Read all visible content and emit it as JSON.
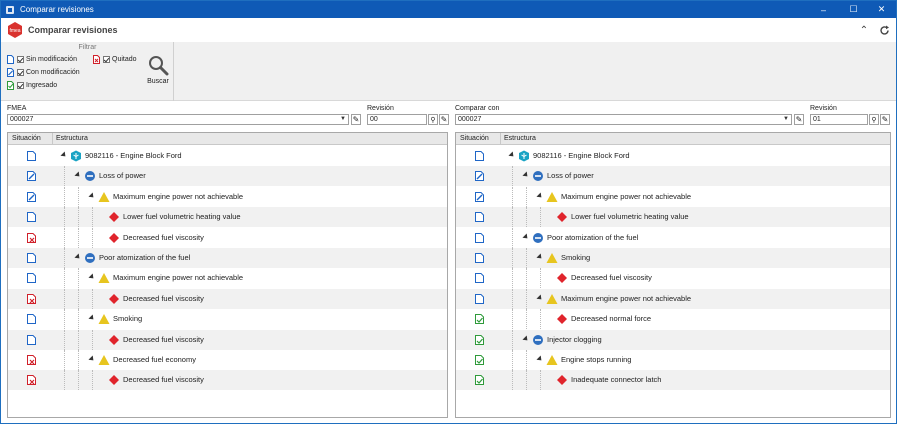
{
  "window": {
    "title": "Comparar revisiones",
    "controls": [
      "minimize",
      "maximize",
      "close"
    ]
  },
  "header": {
    "title": "Comparar revisiones",
    "buttons": [
      "collapse-icon",
      "refresh-icon"
    ]
  },
  "filters": {
    "group_title": "Filtrar",
    "items": [
      {
        "label": "Sin modificación",
        "checked": true,
        "icon": "doc-blue-icon"
      },
      {
        "label": "Con modificación",
        "checked": true,
        "icon": "doc-edit-icon"
      },
      {
        "label": "Ingresado",
        "checked": true,
        "icon": "doc-green-check-icon"
      },
      {
        "label": "Quitado",
        "checked": true,
        "icon": "doc-red-x-icon"
      }
    ],
    "search_label": "Buscar"
  },
  "left": {
    "fmea_label": "FMEA",
    "fmea_value": "000027",
    "rev_label": "Revisión",
    "rev_value": "00"
  },
  "right": {
    "fmea_label": "Comparar con",
    "fmea_value": "000027",
    "rev_label": "Revisión",
    "rev_value": "01"
  },
  "columns": {
    "situation": "Situación",
    "structure": "Estructura"
  },
  "left_rows": [
    {
      "status": "unchanged",
      "level": 0,
      "type": "product",
      "label": "9082116 - Engine Block Ford"
    },
    {
      "status": "modified",
      "level": 1,
      "type": "function",
      "label": "Loss of power"
    },
    {
      "status": "modified",
      "level": 2,
      "type": "failure",
      "label": "Maximum engine power not achievable"
    },
    {
      "status": "unchanged",
      "level": 3,
      "type": "cause",
      "label": "Lower fuel volumetric heating value"
    },
    {
      "status": "removed",
      "level": 3,
      "type": "cause",
      "label": "Decreased fuel viscosity"
    },
    {
      "status": "unchanged",
      "level": 1,
      "type": "function",
      "label": "Poor atomization of the fuel"
    },
    {
      "status": "unchanged",
      "level": 2,
      "type": "failure",
      "label": "Maximum engine power not achievable"
    },
    {
      "status": "removed",
      "level": 3,
      "type": "cause",
      "label": "Decreased fuel viscosity"
    },
    {
      "status": "unchanged",
      "level": 2,
      "type": "failure",
      "label": "Smoking"
    },
    {
      "status": "unchanged",
      "level": 3,
      "type": "cause",
      "label": "Decreased fuel viscosity"
    },
    {
      "status": "removed",
      "level": 2,
      "type": "failure",
      "label": "Decreased fuel economy"
    },
    {
      "status": "removed",
      "level": 3,
      "type": "cause",
      "label": "Decreased fuel viscosity"
    }
  ],
  "right_rows": [
    {
      "status": "unchanged",
      "level": 0,
      "type": "product",
      "label": "9082116 - Engine Block Ford"
    },
    {
      "status": "modified",
      "level": 1,
      "type": "function",
      "label": "Loss of power"
    },
    {
      "status": "modified",
      "level": 2,
      "type": "failure",
      "label": "Maximum engine power not achievable"
    },
    {
      "status": "unchanged",
      "level": 3,
      "type": "cause",
      "label": "Lower fuel volumetric heating value"
    },
    {
      "status": "unchanged",
      "level": 1,
      "type": "function",
      "label": "Poor atomization of the fuel"
    },
    {
      "status": "unchanged",
      "level": 2,
      "type": "failure",
      "label": "Smoking"
    },
    {
      "status": "unchanged",
      "level": 3,
      "type": "cause",
      "label": "Decreased fuel viscosity"
    },
    {
      "status": "unchanged",
      "level": 2,
      "type": "failure",
      "label": "Maximum engine power not achievable"
    },
    {
      "status": "added",
      "level": 3,
      "type": "cause",
      "label": "Decreased normal force"
    },
    {
      "status": "added",
      "level": 1,
      "type": "function",
      "label": "Injector clogging"
    },
    {
      "status": "added",
      "level": 2,
      "type": "failure",
      "label": "Engine stops running"
    },
    {
      "status": "added",
      "level": 3,
      "type": "cause",
      "label": "Inadequate connector latch"
    }
  ],
  "colors": {
    "titlebar": "#0f5ab6",
    "unchanged": "#1f66c7",
    "removed": "#d0202a",
    "added": "#2e9a3a",
    "function": "#2f6fbf",
    "failure": "#e7c51f",
    "cause": "#e0242c",
    "product": "#1aa3c4"
  }
}
